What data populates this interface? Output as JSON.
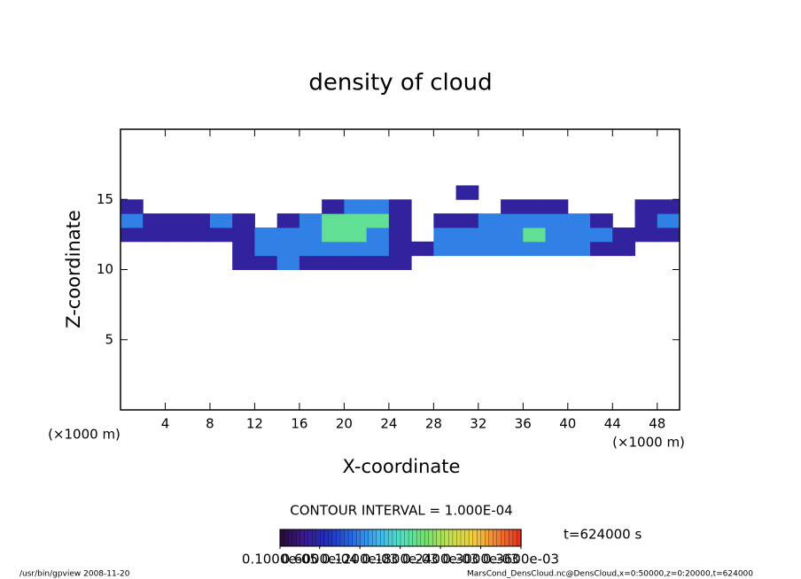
{
  "chart_data": {
    "type": "heatmap",
    "title": "density of cloud",
    "x_label": "X-coordinate",
    "y_label": "Z-coordinate",
    "x_unit_left": "(×1000 m)",
    "x_unit_right": "(×1000 m)",
    "xlim": [
      0,
      50
    ],
    "xticks": [
      4,
      8,
      12,
      16,
      20,
      24,
      28,
      32,
      36,
      40,
      44,
      48
    ],
    "ylim": [
      0,
      20
    ],
    "yticks": [
      5,
      10,
      15
    ],
    "x": [
      0,
      2,
      4,
      6,
      8,
      10,
      12,
      14,
      16,
      18,
      20,
      22,
      24,
      26,
      28,
      30,
      32,
      34,
      36,
      38,
      40,
      42,
      44,
      46,
      48,
      50
    ],
    "y": [
      10,
      11,
      12,
      13,
      14,
      15,
      16
    ],
    "values": [
      [
        null,
        null,
        null,
        null,
        null,
        5e-05,
        5e-05,
        0.00012,
        5e-05,
        5e-05,
        5e-05,
        5e-05,
        5e-05,
        null,
        null,
        null,
        null,
        null,
        null,
        null,
        null,
        null,
        null,
        null,
        null
      ],
      [
        null,
        null,
        null,
        null,
        null,
        5e-05,
        0.00012,
        0.00012,
        0.00012,
        0.00012,
        0.00012,
        0.00012,
        5e-05,
        5e-05,
        0.00012,
        0.00012,
        0.00012,
        0.00012,
        0.00012,
        0.00012,
        0.00012,
        5e-05,
        5e-05,
        null,
        null
      ],
      [
        5e-05,
        5e-05,
        5e-05,
        5e-05,
        5e-05,
        5e-05,
        0.00012,
        0.00012,
        0.00012,
        0.0002,
        0.0002,
        0.00012,
        5e-05,
        null,
        0.00012,
        0.00012,
        0.00012,
        0.00012,
        0.0002,
        0.00012,
        0.00012,
        0.00012,
        5e-05,
        5e-05,
        5e-05
      ],
      [
        0.00012,
        5e-05,
        5e-05,
        5e-05,
        0.00012,
        5e-05,
        null,
        5e-05,
        0.00012,
        0.0002,
        0.0002,
        0.0002,
        5e-05,
        null,
        5e-05,
        5e-05,
        0.00012,
        0.00012,
        0.00012,
        0.00012,
        0.00012,
        5e-05,
        null,
        5e-05,
        0.00012
      ],
      [
        5e-05,
        null,
        null,
        null,
        null,
        null,
        null,
        null,
        null,
        5e-05,
        0.00012,
        0.00012,
        5e-05,
        null,
        null,
        null,
        null,
        5e-05,
        5e-05,
        5e-05,
        null,
        null,
        null,
        5e-05,
        5e-05
      ],
      [
        null,
        null,
        null,
        null,
        null,
        null,
        null,
        null,
        null,
        null,
        null,
        null,
        null,
        null,
        null,
        5e-05,
        null,
        null,
        null,
        null,
        null,
        null,
        null,
        null,
        null
      ]
    ],
    "clim": [
      1e-06,
      0.00036
    ],
    "colormap": [
      "#2a0a3a",
      "#3a1a8a",
      "#2030c0",
      "#2a6ae0",
      "#40b0f0",
      "#50e0c0",
      "#70e070",
      "#c0e050",
      "#f0d040",
      "#f08030",
      "#e03020"
    ],
    "colorbar_ticks": [
      {
        "value": 1e-06,
        "label": "0.1000e-05"
      },
      {
        "value": 6e-05,
        "label": "0.6000e-04"
      },
      {
        "value": 0.00012,
        "label": "0.1200e-03"
      },
      {
        "value": 0.00018,
        "label": "0.1800e-03"
      },
      {
        "value": 0.00024,
        "label": "0.2400e-03"
      },
      {
        "value": 0.0003,
        "label": "0.3000e-03"
      },
      {
        "value": 0.00036,
        "label": "0.3600e-03"
      }
    ],
    "contour_interval": "CONTOUR INTERVAL = 1.000E-04",
    "time_label": "t=624000 s",
    "footer_left": "/usr/bin/gpview  2008-11-20",
    "footer_right": "MarsCond_DensCloud.nc@DensCloud,x=0:50000,z=0:20000,t=624000"
  }
}
